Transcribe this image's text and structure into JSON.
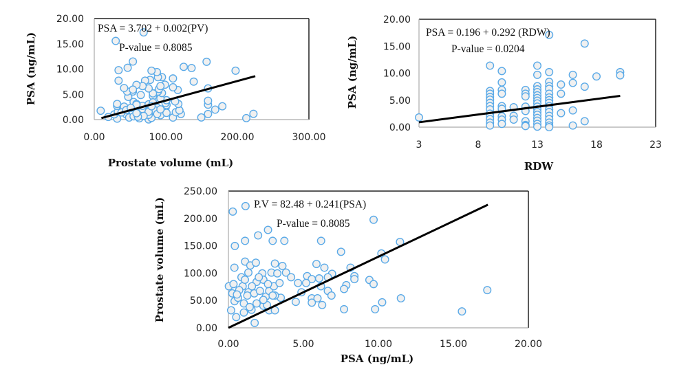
{
  "chart_data": [
    {
      "type": "scatter",
      "xlabel": "Prostate volume (mL)",
      "ylabel": "PSA (ng/mL)",
      "xlim": [
        0,
        300
      ],
      "ylim": [
        0,
        20
      ],
      "xticks": [
        "0.00",
        "100.00",
        "200.00",
        "300.00"
      ],
      "yticks": [
        "0.00",
        "5.00",
        "10.00",
        "15.00",
        "20.00"
      ],
      "annotations": [
        "PSA = 3.702 + 0.002(PV)",
        "P-value = 0.8085"
      ],
      "trendline": [
        [
          10,
          0.3
        ],
        [
          225,
          8.6
        ]
      ],
      "marker_color": "#5aaae8",
      "points_from": "shared_pairs_pv_psa"
    },
    {
      "type": "scatter",
      "xlabel": "RDW",
      "ylabel": "PSA (ng/mL)",
      "xlim": [
        3,
        23
      ],
      "ylim": [
        0,
        20
      ],
      "xticks": [
        "3",
        "8",
        "13",
        "18",
        "23"
      ],
      "yticks": [
        "0.00",
        "5.00",
        "10.00",
        "15.00",
        "20.00"
      ],
      "annotations": [
        "PSA = 0.196 + 0.292 (RDW)",
        "P-value = 0.0204"
      ],
      "trendline": [
        [
          3,
          0.9
        ],
        [
          20,
          5.8
        ]
      ],
      "marker_color": "#5aaae8",
      "points": [
        [
          3,
          1.8
        ],
        [
          9,
          11.4
        ],
        [
          9,
          6.7
        ],
        [
          9,
          6.2
        ],
        [
          9,
          5.6
        ],
        [
          9,
          5.1
        ],
        [
          9,
          4.5
        ],
        [
          9,
          3.9
        ],
        [
          9,
          3.3
        ],
        [
          9,
          2.5
        ],
        [
          9,
          2.0
        ],
        [
          9,
          1.5
        ],
        [
          9,
          0.85
        ],
        [
          9,
          0.3
        ],
        [
          10,
          10.4
        ],
        [
          10,
          8.3
        ],
        [
          10,
          6.9
        ],
        [
          10,
          6.2
        ],
        [
          10,
          3.9
        ],
        [
          10,
          3.4
        ],
        [
          10,
          2.0
        ],
        [
          10,
          1.4
        ],
        [
          10,
          0.6
        ],
        [
          11,
          3.7
        ],
        [
          11,
          2.1
        ],
        [
          11,
          1.4
        ],
        [
          12,
          6.9
        ],
        [
          12,
          6.2
        ],
        [
          12,
          5.7
        ],
        [
          12,
          3.8
        ],
        [
          12,
          3.0
        ],
        [
          12,
          1.1
        ],
        [
          12,
          0.4
        ],
        [
          12,
          0.2
        ],
        [
          13,
          11.4
        ],
        [
          13,
          9.7
        ],
        [
          13,
          7.6
        ],
        [
          13,
          7.0
        ],
        [
          13,
          6.5
        ],
        [
          13,
          5.9
        ],
        [
          13,
          5.4
        ],
        [
          13,
          4.9
        ],
        [
          13,
          4.4
        ],
        [
          13,
          3.8
        ],
        [
          13,
          3.3
        ],
        [
          13,
          2.8
        ],
        [
          13,
          2.3
        ],
        [
          13,
          1.7
        ],
        [
          13,
          1.2
        ],
        [
          13,
          0.6
        ],
        [
          13,
          0.1
        ],
        [
          14,
          17.1
        ],
        [
          14,
          10.2
        ],
        [
          14,
          8.4
        ],
        [
          14,
          7.6
        ],
        [
          14,
          7.1
        ],
        [
          14,
          6.2
        ],
        [
          14,
          5.5
        ],
        [
          14,
          5.0
        ],
        [
          14,
          4.5
        ],
        [
          14,
          3.9
        ],
        [
          14,
          3.3
        ],
        [
          14,
          2.8
        ],
        [
          14,
          2.1
        ],
        [
          14,
          1.5
        ],
        [
          14,
          0.85
        ],
        [
          14,
          0.3
        ],
        [
          14,
          0
        ],
        [
          15,
          7.9
        ],
        [
          15,
          6.2
        ],
        [
          15,
          2.6
        ],
        [
          16,
          9.7
        ],
        [
          16,
          8.2
        ],
        [
          16,
          3.1
        ],
        [
          16,
          0.3
        ],
        [
          17,
          15.5
        ],
        [
          17,
          7.5
        ],
        [
          17,
          1.1
        ],
        [
          18,
          9.4
        ],
        [
          20,
          10.2
        ],
        [
          20,
          9.6
        ]
      ]
    },
    {
      "type": "scatter",
      "xlabel": "PSA (ng/mL)",
      "ylabel": "Prostate volume (mL)",
      "xlim": [
        0,
        20
      ],
      "ylim": [
        0,
        250
      ],
      "xticks": [
        "0.00",
        "5.00",
        "10.00",
        "15.00",
        "20.00"
      ],
      "yticks": [
        "0.00",
        "50.00",
        "100.00",
        "150.00",
        "200.00",
        "250.00"
      ],
      "annotations": [
        "P.V = 82.48 + 0.241(PSA)",
        "P-value = 0.8085"
      ],
      "trendline": [
        [
          0,
          0
        ],
        [
          17.3,
          225
        ]
      ],
      "marker_color": "#5aaae8",
      "points": [
        [
          0.29,
          212.5
        ],
        [
          1.14,
          222.5
        ],
        [
          9.68,
          197.5
        ],
        [
          2.64,
          179
        ],
        [
          1.98,
          169
        ],
        [
          1.11,
          159
        ],
        [
          2.95,
          159
        ],
        [
          3.73,
          159
        ],
        [
          6.18,
          159
        ],
        [
          0.43,
          149.6
        ],
        [
          11.44,
          157
        ],
        [
          7.51,
          139
        ],
        [
          10.2,
          136
        ],
        [
          10.44,
          125
        ],
        [
          0.4,
          110
        ],
        [
          1.11,
          121
        ],
        [
          1.46,
          114
        ],
        [
          1.83,
          119
        ],
        [
          3.1,
          117.5
        ],
        [
          3.6,
          113
        ],
        [
          5.87,
          116.7
        ],
        [
          6.4,
          110
        ],
        [
          8.14,
          110
        ],
        [
          2.26,
          99.6
        ],
        [
          2.87,
          101
        ],
        [
          3.26,
          99.6
        ],
        [
          3.84,
          101
        ],
        [
          4.18,
          92.5
        ],
        [
          5.25,
          94.6
        ],
        [
          5.56,
          89
        ],
        [
          6.05,
          90.4
        ],
        [
          6.91,
          98.75
        ],
        [
          8.4,
          94.6
        ],
        [
          8.4,
          89
        ],
        [
          9.4,
          87.5
        ],
        [
          9.68,
          80
        ],
        [
          7.86,
          78
        ],
        [
          7.71,
          71
        ],
        [
          6.63,
          92.5
        ],
        [
          4.64,
          82
        ],
        [
          5.18,
          82
        ],
        [
          6.17,
          76
        ],
        [
          6.63,
          67.5
        ],
        [
          6.87,
          59
        ],
        [
          4.87,
          65
        ],
        [
          4.49,
          47.5
        ],
        [
          5.56,
          54
        ],
        [
          5.56,
          46
        ],
        [
          5.94,
          54
        ],
        [
          6.25,
          41.7
        ],
        [
          7.71,
          34
        ],
        [
          9.78,
          34
        ],
        [
          10.25,
          46.7
        ],
        [
          11.5,
          54
        ],
        [
          15.57,
          30
        ],
        [
          17.26,
          69
        ],
        [
          1.75,
          9
        ],
        [
          0.18,
          32
        ],
        [
          0.52,
          19.6
        ],
        [
          1.03,
          28
        ],
        [
          1.54,
          33
        ],
        [
          2.72,
          32
        ],
        [
          3.1,
          32
        ],
        [
          2.33,
          40.4
        ],
        [
          2.57,
          41.7
        ],
        [
          3.49,
          55
        ],
        [
          3.1,
          59
        ],
        [
          1.03,
          44.6
        ],
        [
          1.42,
          38
        ],
        [
          1.88,
          44.6
        ],
        [
          0.41,
          48.75
        ],
        [
          0.64,
          55
        ],
        [
          0.26,
          63
        ],
        [
          0.03,
          76
        ],
        [
          0.34,
          80
        ],
        [
          0.87,
          92.5
        ],
        [
          1.33,
          101
        ],
        [
          0.95,
          76
        ],
        [
          1.33,
          65
        ],
        [
          1.72,
          63
        ],
        [
          2.1,
          67.5
        ],
        [
          2.49,
          57
        ],
        [
          2.72,
          67.5
        ],
        [
          3.03,
          76
        ],
        [
          3.41,
          82
        ],
        [
          2.33,
          88
        ],
        [
          1.88,
          84
        ],
        [
          1.57,
          76
        ],
        [
          1.1,
          88
        ],
        [
          0.72,
          69
        ],
        [
          0.57,
          61
        ],
        [
          2.03,
          92.5
        ],
        [
          2.64,
          80
        ],
        [
          2.95,
          59
        ],
        [
          2.33,
          51
        ],
        [
          1.26,
          59
        ]
      ]
    }
  ]
}
